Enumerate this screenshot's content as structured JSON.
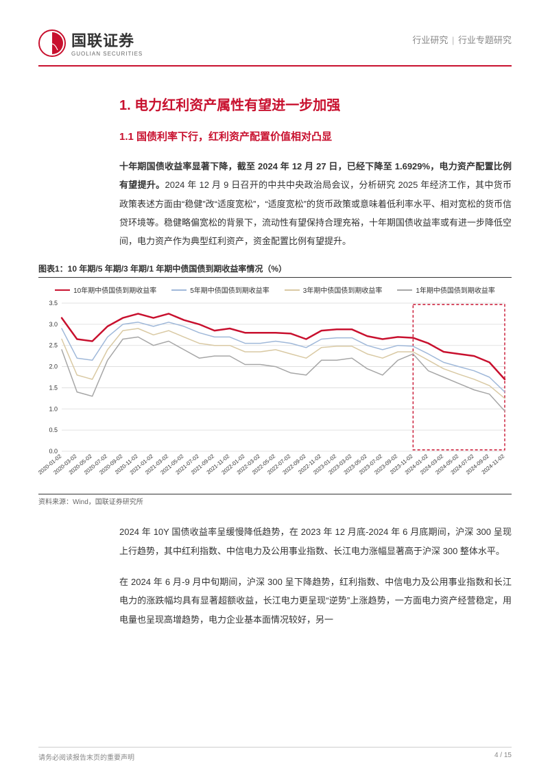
{
  "header": {
    "logo_cn": "国联证券",
    "logo_en": "GUOLIAN SECURITIES",
    "breadcrumb_left": "行业研究",
    "breadcrumb_right": "行业专题研究"
  },
  "section": {
    "title": "1. 电力红利资产属性有望进一步加强",
    "subtitle": "1.1 国债利率下行，红利资产配置价值相对凸显"
  },
  "para1_bold": "十年期国债收益率显著下降，截至 2024 年 12 月 27 日，已经下降至 1.6929%，电力资产配置比例有望提升。",
  "para1_rest": "2024 年 12 月 9 日召开的中共中央政治局会议，分析研究 2025 年经济工作，其中货币政策表述方面由“稳健”改“适度宽松”，“适度宽松”的货币政策或意味着低利率水平、相对宽松的货币信贷环境等。稳健略偏宽松的背景下，流动性有望保持合理充裕，十年期国债收益率或有进一步降低空间，电力资产作为典型红利资产，资金配置比例有望提升。",
  "chart": {
    "type": "line",
    "caption": "图表1：10 年期/5 年期/3 年期/1 年期中债国债到期收益率情况（%）",
    "source": "资料来源：Wind，国联证券研究所",
    "ylim": [
      0.0,
      3.5
    ],
    "ytick_step": 0.5,
    "yticks": [
      "0.0",
      "0.5",
      "1.0",
      "1.5",
      "2.0",
      "2.5",
      "3.0",
      "3.5"
    ],
    "xlabels": [
      "2020-01-02",
      "2020-03-02",
      "2020-05-02",
      "2020-07-02",
      "2020-09-02",
      "2020-11-02",
      "2021-01-02",
      "2021-03-02",
      "2021-05-02",
      "2021-07-02",
      "2021-09-02",
      "2021-11-02",
      "2022-01-02",
      "2022-03-02",
      "2022-05-02",
      "2022-07-02",
      "2022-09-02",
      "2022-11-02",
      "2023-01-02",
      "2023-03-02",
      "2023-05-02",
      "2023-07-02",
      "2023-09-02",
      "2023-11-02",
      "2024-01-02",
      "2024-03-02",
      "2024-05-02",
      "2024-07-02",
      "2024-09-02",
      "2024-11-02"
    ],
    "legend": [
      {
        "label": "10年期中债国债到期收益率",
        "color": "#c8102e",
        "width": 2.5
      },
      {
        "label": "5年期中债国债到期收益率",
        "color": "#9fb8d9",
        "width": 1.5
      },
      {
        "label": "3年期中债国债到期收益率",
        "color": "#d9c9a3",
        "width": 1.5
      },
      {
        "label": "1年期中债国债到期收益率",
        "color": "#a6a6a6",
        "width": 1.5
      }
    ],
    "series": {
      "y10": [
        3.15,
        2.65,
        2.6,
        2.95,
        3.15,
        3.25,
        3.15,
        3.25,
        3.1,
        3.0,
        2.85,
        2.9,
        2.8,
        2.8,
        2.8,
        2.78,
        2.65,
        2.85,
        2.88,
        2.88,
        2.72,
        2.65,
        2.7,
        2.68,
        2.55,
        2.35,
        2.3,
        2.25,
        2.1,
        1.7
      ],
      "y5": [
        2.9,
        2.2,
        2.15,
        2.7,
        3.0,
        3.05,
        2.95,
        3.05,
        2.95,
        2.8,
        2.7,
        2.7,
        2.55,
        2.55,
        2.6,
        2.55,
        2.45,
        2.65,
        2.68,
        2.68,
        2.5,
        2.4,
        2.5,
        2.48,
        2.3,
        2.1,
        2.0,
        1.9,
        1.75,
        1.4
      ],
      "y3": [
        2.65,
        1.8,
        1.7,
        2.4,
        2.85,
        2.9,
        2.75,
        2.85,
        2.7,
        2.55,
        2.5,
        2.5,
        2.35,
        2.35,
        2.4,
        2.3,
        2.2,
        2.45,
        2.48,
        2.48,
        2.3,
        2.2,
        2.35,
        2.35,
        2.15,
        1.95,
        1.82,
        1.7,
        1.55,
        1.25
      ],
      "y1": [
        2.4,
        1.4,
        1.3,
        2.15,
        2.65,
        2.7,
        2.5,
        2.6,
        2.4,
        2.2,
        2.25,
        2.25,
        2.05,
        2.05,
        2.0,
        1.85,
        1.8,
        2.15,
        2.15,
        2.2,
        1.95,
        1.8,
        2.15,
        2.3,
        1.9,
        1.75,
        1.6,
        1.45,
        1.35,
        0.95
      ]
    },
    "highlight_box": {
      "x_start_idx": 23,
      "x_end_idx": 29,
      "color": "#c8102e"
    },
    "background_color": "#ffffff",
    "grid_color": "#d9d9d9",
    "axis_font_size": 9
  },
  "para2": "2024 年 10Y 国债收益率呈缓慢降低趋势，在 2023 年 12 月底-2024 年 6 月底期间，沪深 300 呈现上行趋势，其中红利指数、中信电力及公用事业指数、长江电力涨幅显著高于沪深 300 整体水平。",
  "para3": "在 2024 年 6 月-9 月中旬期间，沪深 300 呈下降趋势，红利指数、中信电力及公用事业指数和长江电力的涨跌幅均具有显著超额收益，长江电力更呈现“逆势”上涨趋势，一方面电力资产经营稳定，用电量也呈现高增趋势，电力企业基本面情况较好，另一",
  "footer": {
    "left": "请务必阅读报告末页的重要声明",
    "right": "4 / 15"
  },
  "colors": {
    "brand_red": "#c8102e",
    "text": "#333333",
    "muted": "#888888",
    "grid": "#d9d9d9"
  }
}
